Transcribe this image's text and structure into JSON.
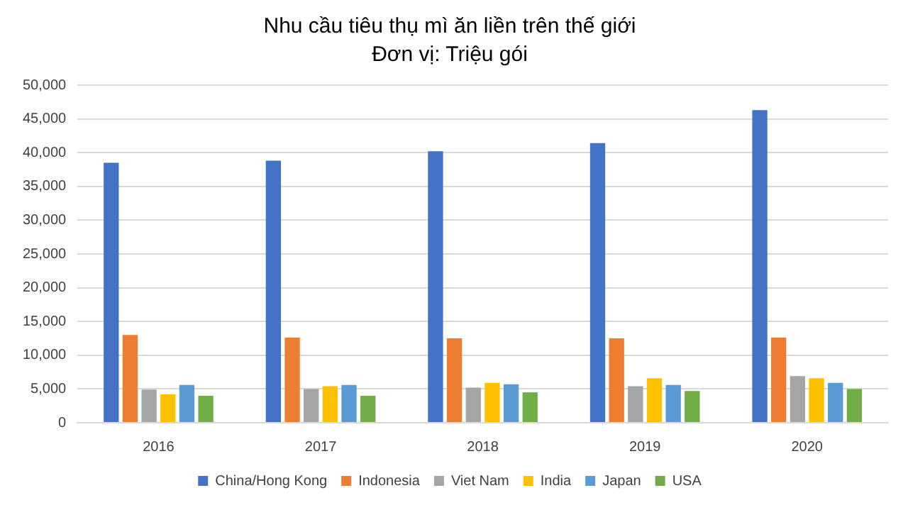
{
  "chart_data": {
    "type": "bar",
    "title": "Nhu cầu tiêu thụ mì ăn liền trên thế giới",
    "subtitle": "Đơn vị: Triệu gói",
    "categories": [
      "2016",
      "2017",
      "2018",
      "2019",
      "2020"
    ],
    "series": [
      {
        "name": "China/Hong Kong",
        "color": "#4472c4",
        "values": [
          38500,
          38800,
          40200,
          41400,
          46300
        ]
      },
      {
        "name": "Indonesia",
        "color": "#ed7d31",
        "values": [
          13000,
          12600,
          12500,
          12500,
          12600
        ]
      },
      {
        "name": "Viet Nam",
        "color": "#a5a5a5",
        "values": [
          4900,
          5000,
          5200,
          5400,
          6900
        ]
      },
      {
        "name": "India",
        "color": "#ffc000",
        "values": [
          4200,
          5400,
          5900,
          6600,
          6600
        ]
      },
      {
        "name": "Japan",
        "color": "#5b9bd5",
        "values": [
          5600,
          5600,
          5700,
          5600,
          5900
        ]
      },
      {
        "name": "USA",
        "color": "#70ad47",
        "values": [
          4000,
          4000,
          4500,
          4700,
          5000
        ]
      }
    ],
    "ylim": [
      0,
      50000
    ],
    "yticks": [
      0,
      {
        "value": 5000,
        "label": "5,000"
      },
      {
        "value": 10000,
        "label": "10,000"
      },
      {
        "value": 15000,
        "label": "15,000"
      },
      {
        "value": 20000,
        "label": "20,000"
      },
      {
        "value": 25000,
        "label": "25,000"
      },
      {
        "value": 30000,
        "label": "30,000"
      },
      {
        "value": 35000,
        "label": "35,000"
      },
      {
        "value": 40000,
        "label": "40,000"
      },
      {
        "value": 45000,
        "label": "45,000"
      },
      {
        "value": 50000,
        "label": "50,000"
      }
    ],
    "grid": "y",
    "legend": "bottom"
  }
}
